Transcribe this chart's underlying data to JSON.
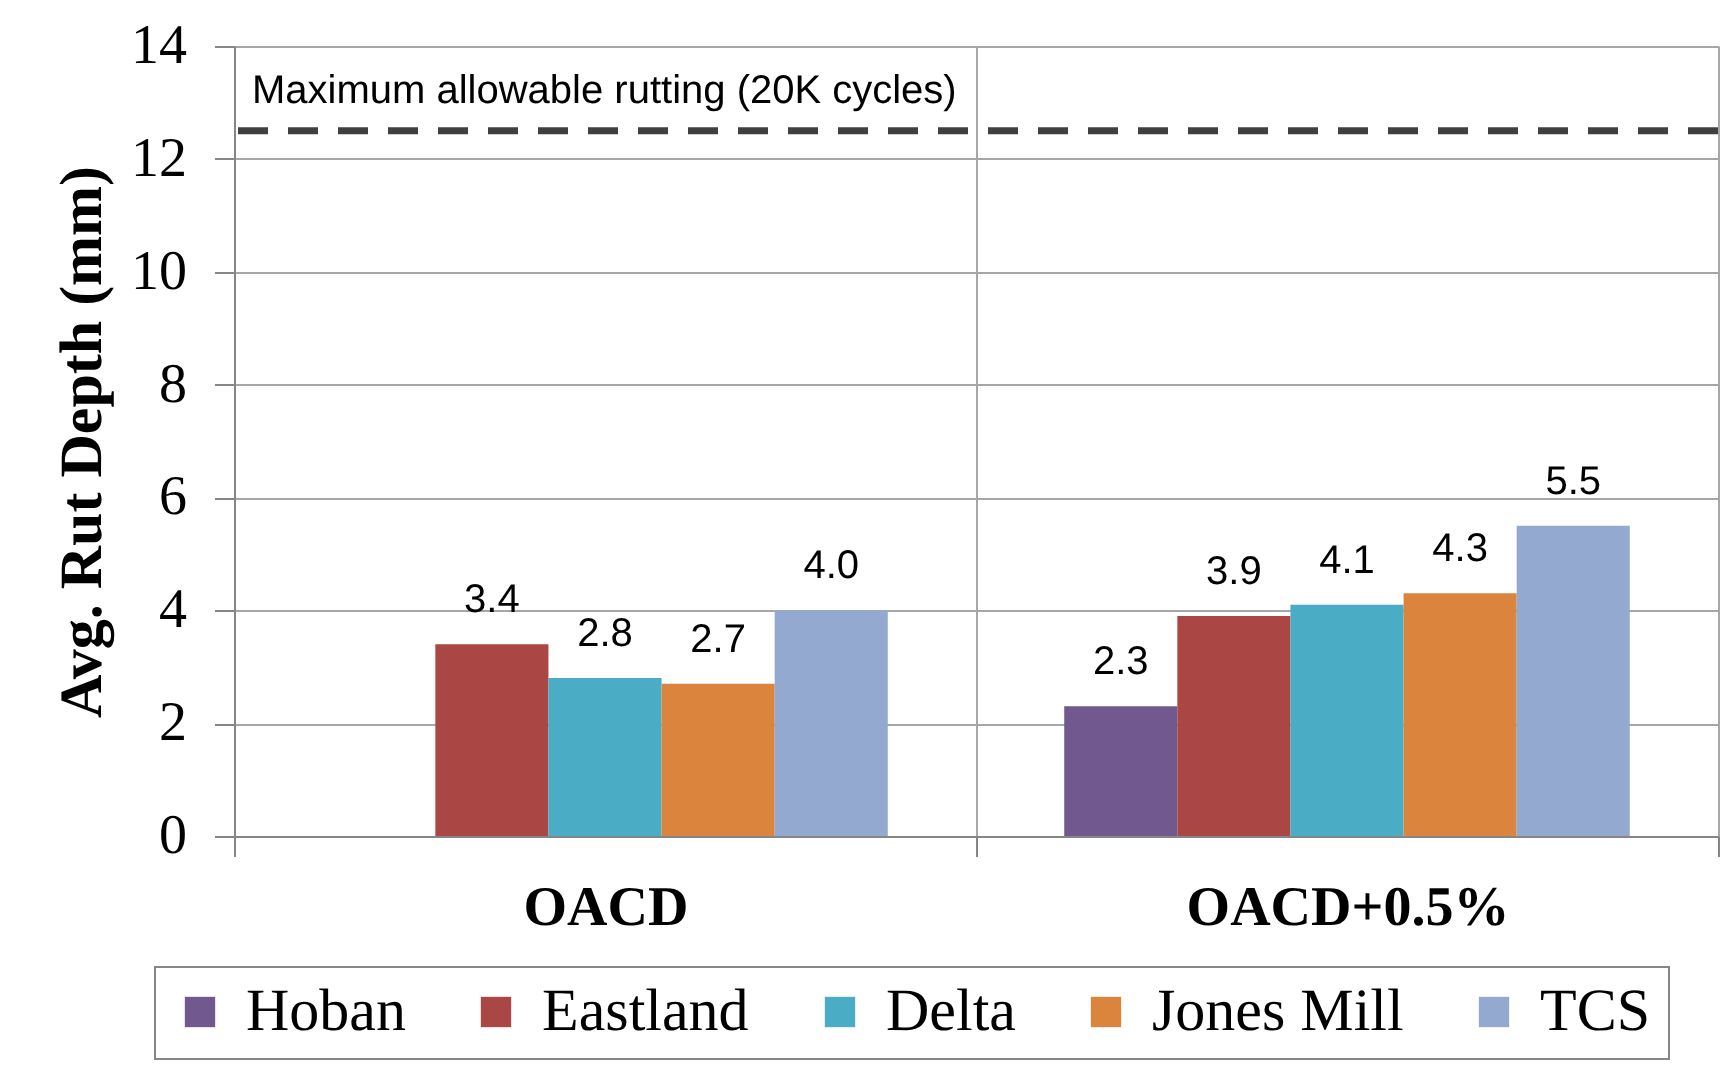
{
  "chart_data": {
    "type": "bar",
    "categories": [
      "OACD",
      "OACD+0.5%"
    ],
    "ylabel": "Avg. Rut Depth (mm)",
    "series": [
      {
        "name": "Hoban",
        "color": "#71588f",
        "values": [
          null,
          2.3
        ],
        "value_labels": [
          null,
          "2.3"
        ]
      },
      {
        "name": "Eastland",
        "color": "#aa4643",
        "values": [
          3.4,
          3.9
        ],
        "value_labels": [
          "3.4",
          "3.9"
        ]
      },
      {
        "name": "Delta",
        "color": "#4bacc6",
        "values": [
          2.8,
          4.1
        ],
        "value_labels": [
          "2.8",
          "4.1"
        ]
      },
      {
        "name": "Jones Mill",
        "color": "#db843d",
        "values": [
          2.7,
          4.3
        ],
        "value_labels": [
          "2.7",
          "4.3"
        ]
      },
      {
        "name": "TCS",
        "color": "#93a9cf",
        "values": [
          4.0,
          5.5
        ],
        "value_labels": [
          "4.0",
          "5.5"
        ]
      }
    ],
    "ylim": [
      0,
      14
    ],
    "yticks": [
      0,
      2,
      4,
      6,
      8,
      10,
      12,
      14
    ],
    "grid": true,
    "legend": "bottom",
    "ref_lines": [
      {
        "axis": "y",
        "value": 12.5,
        "label": "Maximum allowable rutting (20K cycles)",
        "color": "#404040",
        "line_style": "dashed"
      }
    ]
  }
}
